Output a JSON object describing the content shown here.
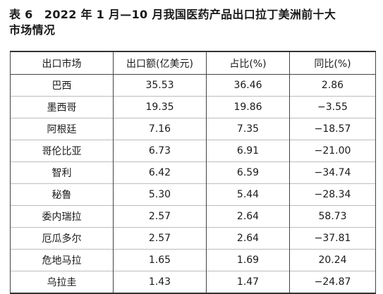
{
  "title": {
    "line1": "表 6　2022 年 1 月—10 月我国医药产品出口拉丁美洲前十大",
    "line2": "市场情况"
  },
  "table": {
    "headers": [
      "出口市场",
      "出口额(亿美元)",
      "占比(%)",
      "同比(%)"
    ],
    "rows": [
      [
        "巴西",
        "35.53",
        "36.46",
        "2.86"
      ],
      [
        "墨西哥",
        "19.35",
        "19.86",
        "−3.55"
      ],
      [
        "阿根廷",
        "7.16",
        "7.35",
        "−18.57"
      ],
      [
        "哥伦比亚",
        "6.73",
        "6.91",
        "−21.00"
      ],
      [
        "智利",
        "6.42",
        "6.59",
        "−34.74"
      ],
      [
        "秘鲁",
        "5.30",
        "5.44",
        "−28.34"
      ],
      [
        "委内瑞拉",
        "2.57",
        "2.64",
        "58.73"
      ],
      [
        "厄瓜多尔",
        "2.57",
        "2.64",
        "−37.81"
      ],
      [
        "危地马拉",
        "1.65",
        "1.69",
        "20.24"
      ],
      [
        "乌拉圭",
        "1.43",
        "1.47",
        "−24.87"
      ]
    ]
  }
}
